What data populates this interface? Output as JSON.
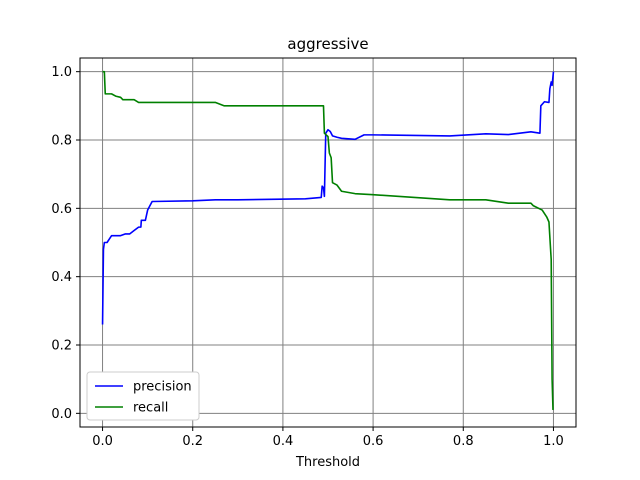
{
  "chart_data": {
    "type": "line",
    "title": "aggressive",
    "xlabel": "Threshold",
    "ylabel": "",
    "xlim": [
      -0.05,
      1.05
    ],
    "ylim": [
      -0.04,
      1.04
    ],
    "xticks": [
      0.0,
      0.2,
      0.4,
      0.6,
      0.8,
      1.0
    ],
    "yticks": [
      0.0,
      0.2,
      0.4,
      0.6,
      0.8,
      1.0
    ],
    "xtick_labels": [
      "0.0",
      "0.2",
      "0.4",
      "0.6",
      "0.8",
      "1.0"
    ],
    "ytick_labels": [
      "0.0",
      "0.2",
      "0.4",
      "0.6",
      "0.8",
      "1.0"
    ],
    "grid": true,
    "grid_color": "#808080",
    "legend_position": "lower-left",
    "series": [
      {
        "name": "precision",
        "color": "#0000ff",
        "points": [
          [
            0.0,
            0.26
          ],
          [
            0.002,
            0.48
          ],
          [
            0.004,
            0.5
          ],
          [
            0.01,
            0.5
          ],
          [
            0.015,
            0.51
          ],
          [
            0.02,
            0.52
          ],
          [
            0.03,
            0.52
          ],
          [
            0.04,
            0.52
          ],
          [
            0.05,
            0.525
          ],
          [
            0.06,
            0.525
          ],
          [
            0.07,
            0.535
          ],
          [
            0.08,
            0.545
          ],
          [
            0.085,
            0.545
          ],
          [
            0.086,
            0.565
          ],
          [
            0.095,
            0.565
          ],
          [
            0.1,
            0.595
          ],
          [
            0.11,
            0.62
          ],
          [
            0.2,
            0.622
          ],
          [
            0.25,
            0.625
          ],
          [
            0.3,
            0.625
          ],
          [
            0.45,
            0.628
          ],
          [
            0.485,
            0.632
          ],
          [
            0.487,
            0.665
          ],
          [
            0.49,
            0.66
          ],
          [
            0.492,
            0.635
          ],
          [
            0.495,
            0.82
          ],
          [
            0.5,
            0.83
          ],
          [
            0.505,
            0.825
          ],
          [
            0.51,
            0.812
          ],
          [
            0.52,
            0.808
          ],
          [
            0.53,
            0.805
          ],
          [
            0.56,
            0.802
          ],
          [
            0.58,
            0.815
          ],
          [
            0.6,
            0.815
          ],
          [
            0.77,
            0.812
          ],
          [
            0.85,
            0.818
          ],
          [
            0.9,
            0.816
          ],
          [
            0.95,
            0.824
          ],
          [
            0.97,
            0.82
          ],
          [
            0.972,
            0.9
          ],
          [
            0.98,
            0.912
          ],
          [
            0.99,
            0.91
          ],
          [
            0.992,
            0.95
          ],
          [
            0.995,
            0.97
          ],
          [
            0.997,
            0.96
          ],
          [
            1.0,
            1.0
          ]
        ]
      },
      {
        "name": "recall",
        "color": "#008000",
        "points": [
          [
            0.0,
            1.0
          ],
          [
            0.004,
            1.0
          ],
          [
            0.006,
            0.935
          ],
          [
            0.02,
            0.935
          ],
          [
            0.03,
            0.928
          ],
          [
            0.04,
            0.925
          ],
          [
            0.045,
            0.918
          ],
          [
            0.07,
            0.918
          ],
          [
            0.08,
            0.91
          ],
          [
            0.25,
            0.91
          ],
          [
            0.27,
            0.9
          ],
          [
            0.49,
            0.9
          ],
          [
            0.492,
            0.82
          ],
          [
            0.5,
            0.81
          ],
          [
            0.503,
            0.762
          ],
          [
            0.507,
            0.748
          ],
          [
            0.51,
            0.675
          ],
          [
            0.52,
            0.668
          ],
          [
            0.53,
            0.65
          ],
          [
            0.56,
            0.643
          ],
          [
            0.6,
            0.64
          ],
          [
            0.77,
            0.625
          ],
          [
            0.85,
            0.625
          ],
          [
            0.9,
            0.615
          ],
          [
            0.95,
            0.615
          ],
          [
            0.955,
            0.608
          ],
          [
            0.975,
            0.595
          ],
          [
            0.985,
            0.575
          ],
          [
            0.99,
            0.56
          ],
          [
            0.995,
            0.45
          ],
          [
            0.997,
            0.1
          ],
          [
            0.999,
            0.01
          ]
        ]
      }
    ]
  }
}
